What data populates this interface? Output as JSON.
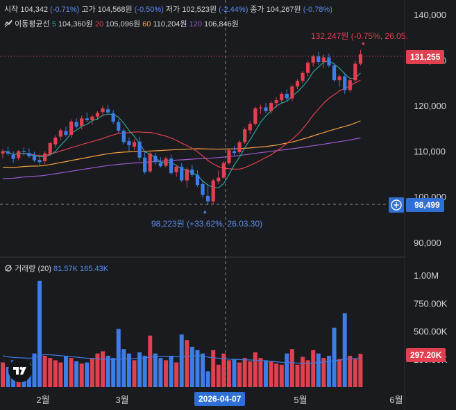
{
  "ohlc_legend": {
    "open_label": "시작",
    "open": "104,342",
    "open_pct": "(-0.71%)",
    "high_label": "고가",
    "high": "104,568원",
    "high_pct": "(-0.50%)",
    "low_label": "저가",
    "low": "102,523원",
    "low_pct": "(-2.44%)",
    "close_label": "종가",
    "close": "104,267원",
    "close_pct": "(-0.78%)"
  },
  "ma_legend": {
    "title": "이동평균선",
    "items": [
      {
        "period": "5",
        "value": "104,360원",
        "color": "#26a69a"
      },
      {
        "period": "20",
        "value": "105,096원",
        "color": "#e0404f"
      },
      {
        "period": "60",
        "value": "110,204원",
        "color": "#f5a142"
      },
      {
        "period": "120",
        "value": "106,846원",
        "color": "#9b59d0"
      }
    ]
  },
  "volume_legend": {
    "title": "거래량 (20)",
    "v1": "81.57K",
    "v2": "165.43K"
  },
  "annotations": {
    "high_text": "132,247원 (-0.75%, 26.05.",
    "low_text": "98,223원 (+33.62%, 26.03.30)"
  },
  "tags": {
    "last_price": "131,255",
    "crosshair_price": "98,499",
    "volume_last": "297.20K",
    "crosshair_date": "2026-04-07"
  },
  "colors": {
    "up": "#e0404f",
    "down": "#3d7de6",
    "bg": "#1a1b1e",
    "grid": "#2a2b2f"
  },
  "chart_data": {
    "type": "candlestick",
    "price_axis": {
      "ticks": [
        90000,
        100000,
        110000,
        120000,
        130000,
        140000
      ],
      "tick_labels": [
        "90,000",
        "100,000",
        "110,000",
        "120,000",
        "130,000",
        "140,000"
      ]
    },
    "volume_axis": {
      "ticks": [
        250000,
        500000,
        750000,
        1000000
      ],
      "tick_labels": [
        "250.00K",
        "500.00K",
        "750.00K",
        "1.00M"
      ]
    },
    "x_labels": [
      "2월",
      "3월",
      "5월",
      "6월"
    ],
    "candles": [
      [
        109500,
        110500,
        108500,
        110000
      ],
      [
        110000,
        111000,
        109000,
        109500
      ],
      [
        109200,
        110000,
        107500,
        108300
      ],
      [
        108500,
        110300,
        108000,
        110000
      ],
      [
        110000,
        110800,
        109000,
        109800
      ],
      [
        109600,
        110600,
        108600,
        108900
      ],
      [
        109000,
        109900,
        107600,
        108000
      ],
      [
        108100,
        109300,
        107000,
        107600
      ],
      [
        107800,
        110000,
        107200,
        109500
      ],
      [
        109400,
        112000,
        109000,
        111800
      ],
      [
        111500,
        113500,
        110800,
        113000
      ],
      [
        113200,
        115000,
        112500,
        114600
      ],
      [
        114400,
        115400,
        113200,
        113600
      ],
      [
        113600,
        117000,
        113000,
        116500
      ],
      [
        116400,
        117200,
        115000,
        115400
      ],
      [
        115500,
        117800,
        114800,
        117200
      ],
      [
        117200,
        118500,
        116400,
        116800
      ],
      [
        116800,
        118000,
        115800,
        117600
      ],
      [
        117600,
        118800,
        116800,
        118400
      ],
      [
        118600,
        120000,
        117600,
        119400
      ],
      [
        119200,
        120200,
        118000,
        118500
      ],
      [
        118300,
        119000,
        116000,
        116500
      ],
      [
        116400,
        117000,
        114000,
        114500
      ],
      [
        114500,
        115000,
        111500,
        112000
      ],
      [
        112200,
        113000,
        110000,
        111300
      ],
      [
        111000,
        112600,
        110200,
        112000
      ],
      [
        112100,
        113200,
        108000,
        108600
      ],
      [
        108600,
        109800,
        105000,
        105400
      ],
      [
        105600,
        110000,
        105200,
        109500
      ],
      [
        109000,
        109600,
        107000,
        107600
      ],
      [
        107500,
        108700,
        106400,
        106700
      ],
      [
        106800,
        108800,
        106400,
        108400
      ],
      [
        108400,
        109200,
        104800,
        105200
      ],
      [
        105400,
        107000,
        104400,
        106600
      ],
      [
        106600,
        107400,
        103200,
        103600
      ],
      [
        103600,
        106400,
        102000,
        106000
      ],
      [
        106000,
        107000,
        104400,
        104800
      ],
      [
        104800,
        105800,
        102200,
        102600
      ],
      [
        102800,
        103600,
        99800,
        100400
      ],
      [
        100200,
        102800,
        98223,
        99000
      ],
      [
        99000,
        104000,
        98500,
        103600
      ],
      [
        103400,
        105800,
        102800,
        104200
      ],
      [
        104200,
        107800,
        104000,
        107400
      ],
      [
        107400,
        110400,
        107000,
        110200
      ],
      [
        110000,
        111200,
        109000,
        109600
      ],
      [
        109800,
        112400,
        109400,
        112000
      ],
      [
        112000,
        115200,
        111600,
        114800
      ],
      [
        114600,
        116600,
        113800,
        116000
      ],
      [
        116000,
        119800,
        115600,
        119400
      ],
      [
        119400,
        120200,
        118200,
        119600
      ],
      [
        119600,
        120600,
        118400,
        118800
      ],
      [
        118800,
        121000,
        118200,
        120600
      ],
      [
        120600,
        121800,
        119600,
        121200
      ],
      [
        121200,
        123000,
        120600,
        122600
      ],
      [
        122600,
        123600,
        121000,
        121600
      ],
      [
        121600,
        124600,
        121000,
        124200
      ],
      [
        124200,
        125800,
        123600,
        125400
      ],
      [
        125400,
        127600,
        124800,
        127200
      ],
      [
        127200,
        129800,
        126400,
        129400
      ],
      [
        129400,
        131200,
        128600,
        130800
      ],
      [
        130800,
        131800,
        129000,
        129600
      ],
      [
        129600,
        131200,
        128200,
        130600
      ],
      [
        130600,
        131400,
        128400,
        128800
      ],
      [
        128800,
        129400,
        125200,
        125600
      ],
      [
        125600,
        126800,
        124200,
        126400
      ],
      [
        126400,
        127200,
        122600,
        123400
      ],
      [
        123400,
        126200,
        123000,
        125600
      ],
      [
        125600,
        129800,
        125200,
        129200
      ],
      [
        129200,
        132247,
        128800,
        131255
      ]
    ],
    "volumes": [
      220000,
      180000,
      240000,
      200000,
      190000,
      210000,
      300000,
      950000,
      280000,
      260000,
      240000,
      220000,
      280000,
      260000,
      230000,
      210000,
      220000,
      260000,
      300000,
      320000,
      280000,
      260000,
      520000,
      340000,
      300000,
      240000,
      310000,
      280000,
      460000,
      300000,
      260000,
      240000,
      280000,
      220000,
      470000,
      420000,
      360000,
      330000,
      300000,
      140000,
      330000,
      200000,
      300000,
      240000,
      250000,
      220000,
      260000,
      230000,
      310000,
      260000,
      240000,
      230000,
      210000,
      200000,
      300000,
      340000,
      200000,
      270000,
      240000,
      330000,
      300000,
      260000,
      280000,
      530000,
      250000,
      660000,
      280000,
      250000,
      297200
    ],
    "volume_ma": [
      280000,
      270000,
      265000,
      262000,
      260000,
      258000,
      262000,
      285000,
      290000,
      288000,
      285000,
      280000,
      276000,
      272000,
      268000,
      262000,
      258000,
      255000,
      252000,
      250000,
      248000,
      246000,
      250000,
      252000,
      255000,
      256000,
      258000,
      260000,
      268000,
      272000,
      274000,
      274000,
      272000,
      270000,
      272000,
      275000,
      278000,
      280000,
      278000,
      268000,
      262000,
      258000,
      254000,
      250000,
      248000,
      246000,
      244000,
      242000,
      240000,
      238000,
      234000,
      230000,
      226000,
      222000,
      220000,
      218000,
      214000,
      212000,
      212000,
      215000,
      220000,
      224000,
      228000,
      236000,
      240000,
      250000,
      254000,
      256000,
      258000
    ]
  }
}
